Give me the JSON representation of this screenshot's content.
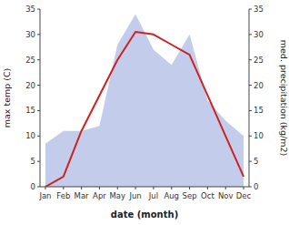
{
  "chart_data": {
    "type": "line",
    "xlabel": "date (month)",
    "ylabel": "max temp (C)",
    "y2label": "med. precipitation (kg/m2)",
    "categories": [
      "Jan",
      "Feb",
      "Mar",
      "Apr",
      "May",
      "Jun",
      "Jul",
      "Aug",
      "Sep",
      "Oct",
      "Nov",
      "Dec"
    ],
    "series": [
      {
        "type": "area",
        "axis": "y2",
        "color": "#b8c4e8",
        "values": [
          8.5,
          11,
          11,
          12,
          28,
          34,
          27,
          24,
          30,
          17,
          13,
          10
        ]
      },
      {
        "type": "line",
        "color": "#cc2222",
        "values": [
          0,
          2,
          11,
          18,
          25,
          30.5,
          30,
          28,
          26,
          18,
          10,
          2
        ]
      }
    ],
    "ylim": [
      0,
      35
    ],
    "yticks": [
      0,
      5,
      10,
      15,
      20,
      25,
      30,
      35
    ],
    "y2lim": [
      0,
      35
    ],
    "y2ticks": [
      0,
      5,
      10,
      15,
      20,
      25,
      30,
      35
    ],
    "grid": false
  }
}
